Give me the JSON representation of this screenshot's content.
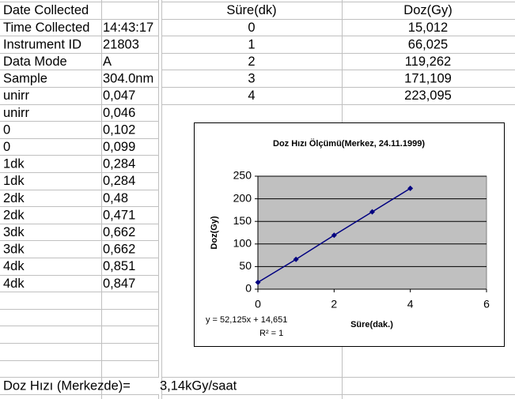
{
  "sheet": {
    "rows": [
      [
        "Date Collected"
      ],
      [
        "Time Collected",
        "14:43:17"
      ],
      [
        "Instrument ID",
        "21803"
      ],
      [
        "Data Mode",
        "A"
      ],
      [
        "Sample",
        "304.0nm"
      ],
      [
        "unirr",
        "0,047"
      ],
      [
        "unirr",
        "0,046"
      ],
      [
        "0",
        "0,102"
      ],
      [
        "0",
        "0,099"
      ],
      [
        "1dk",
        "0,284"
      ],
      [
        "1dk",
        "0,284"
      ],
      [
        "2dk",
        "0,48"
      ],
      [
        "2dk",
        "0,471"
      ],
      [
        "3dk",
        "0,662"
      ],
      [
        "3dk",
        "0,662"
      ],
      [
        "4dk",
        "0,851"
      ],
      [
        "4dk",
        "0,847"
      ]
    ]
  },
  "table": {
    "header": [
      "Süre(dk)",
      "Doz(Gy)"
    ],
    "rows": [
      [
        "0",
        "15,012"
      ],
      [
        "1",
        "66,025"
      ],
      [
        "2",
        "119,262"
      ],
      [
        "3",
        "171,109"
      ],
      [
        "4",
        "223,095"
      ]
    ]
  },
  "footer": {
    "label": "Doz Hızı (Merkezde)=",
    "value": "3,14kGy/saat"
  },
  "chart": {
    "type": "line",
    "title": "Doz Hızı Ölçümü(Merkez, 24.11.1999)",
    "x_label": "Süre(dak.)",
    "y_label": "Doz(Gy)",
    "x": [
      0,
      1,
      2,
      3,
      4
    ],
    "series": [
      {
        "color": "#000080",
        "values": [
          15.012,
          66.025,
          119.262,
          171.109,
          223.095
        ]
      }
    ],
    "xlim": [
      0,
      6
    ],
    "xticks": [
      0,
      2,
      4,
      6
    ],
    "ylim": [
      0,
      250
    ],
    "yticks": [
      0,
      50,
      100,
      150,
      200,
      250
    ],
    "grid": true,
    "plot_background": "#c0c0c0",
    "annotations": [
      "y = 52,125x + 14,651",
      "R² = 1"
    ]
  }
}
